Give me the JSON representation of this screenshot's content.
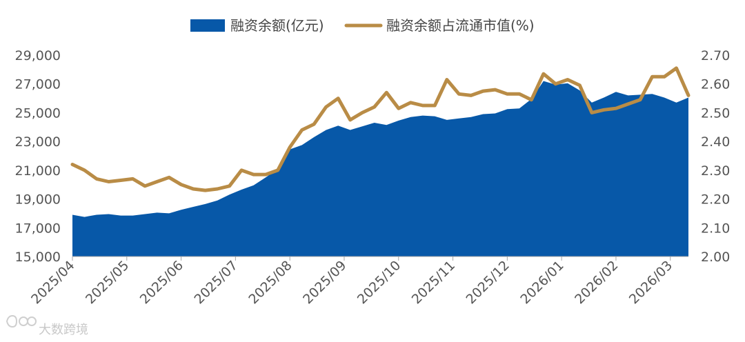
{
  "chart_data": {
    "type": "area+line",
    "title": "",
    "legend": {
      "placement": "top-center",
      "items": [
        {
          "name": "融资余额(亿元)",
          "kind": "area"
        },
        {
          "name": "融资余额占流通市值(%)",
          "kind": "line"
        }
      ]
    },
    "x_tick_labels": [
      "2025/04",
      "2025/05",
      "2025/06",
      "2025/07",
      "2025/08",
      "2025/09",
      "2025/10",
      "2025/11",
      "2025/12",
      "2026/01",
      "2026/02",
      "2026/03"
    ],
    "y_left": {
      "min": 15000,
      "max": 29000,
      "ticks": [
        15000,
        17000,
        19000,
        21000,
        23000,
        25000,
        27000,
        29000
      ],
      "tick_labels": [
        "15,000",
        "17,000",
        "19,000",
        "21,000",
        "23,000",
        "25,000",
        "27,000",
        "29,000"
      ]
    },
    "y_right": {
      "min": 2.0,
      "max": 2.7,
      "ticks": [
        2.0,
        2.1,
        2.2,
        2.3,
        2.4,
        2.5,
        2.6,
        2.7
      ],
      "tick_labels": [
        "2.00",
        "2.10",
        "2.20",
        "2.30",
        "2.40",
        "2.50",
        "2.60",
        "2.70"
      ]
    },
    "series": [
      {
        "name": "融资余额(亿元)",
        "type": "area",
        "axis": "left",
        "color": "#0758a8",
        "values": [
          17900,
          17750,
          17900,
          17950,
          17850,
          17850,
          17950,
          18050,
          18000,
          18250,
          18450,
          18650,
          18900,
          19300,
          19650,
          19950,
          20500,
          21100,
          22450,
          22750,
          23300,
          23800,
          24100,
          23800,
          24050,
          24300,
          24150,
          24450,
          24700,
          24800,
          24750,
          24500,
          24600,
          24700,
          24900,
          24950,
          25250,
          25300,
          25950,
          27200,
          26950,
          27050,
          26550,
          25700,
          26050,
          26450,
          26200,
          26250,
          26300,
          26050,
          25700,
          26050
        ]
      },
      {
        "name": "融资余额占流通市值(%)",
        "type": "line",
        "axis": "right",
        "color": "#b98c46",
        "values": [
          2.32,
          2.3,
          2.27,
          2.26,
          2.265,
          2.27,
          2.245,
          2.26,
          2.275,
          2.25,
          2.235,
          2.23,
          2.235,
          2.245,
          2.3,
          2.285,
          2.285,
          2.3,
          2.38,
          2.44,
          2.46,
          2.52,
          2.55,
          2.475,
          2.5,
          2.52,
          2.57,
          2.515,
          2.535,
          2.525,
          2.525,
          2.615,
          2.565,
          2.56,
          2.575,
          2.58,
          2.565,
          2.565,
          2.545,
          2.635,
          2.6,
          2.615,
          2.595,
          2.5,
          2.51,
          2.515,
          2.53,
          2.545,
          2.625,
          2.625,
          2.655,
          2.56
        ]
      }
    ]
  },
  "watermark": {
    "text": "大数跨境"
  }
}
